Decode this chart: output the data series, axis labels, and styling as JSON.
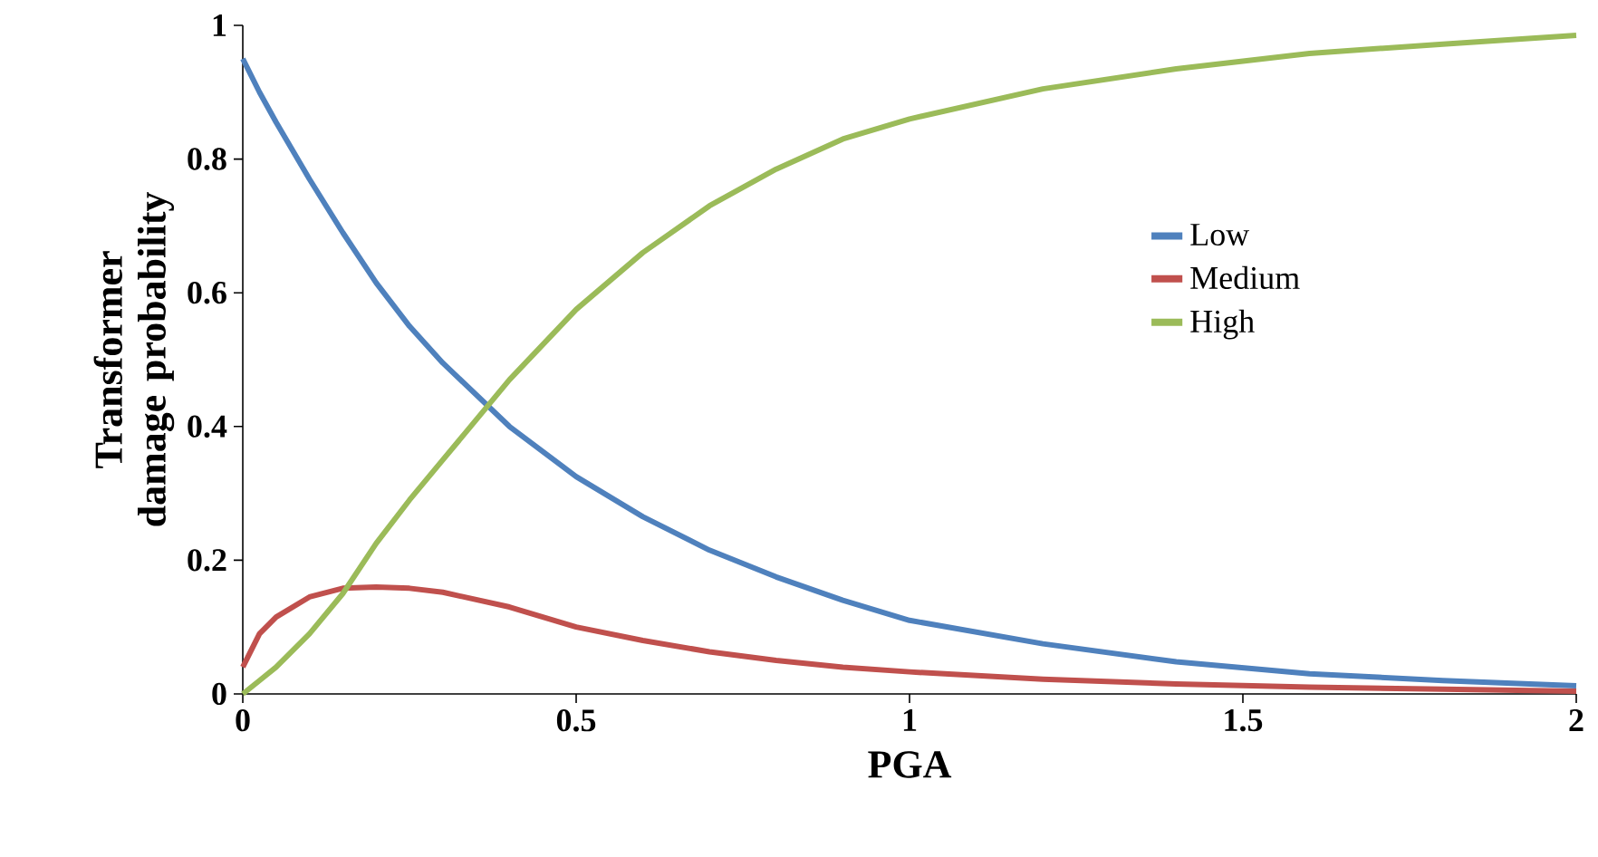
{
  "chart_data": {
    "type": "line",
    "xlabel": "PGA",
    "ylabel": "Transformer damage probability",
    "x": [
      0,
      0.025,
      0.05,
      0.1,
      0.15,
      0.2,
      0.25,
      0.3,
      0.4,
      0.5,
      0.6,
      0.7,
      0.8,
      0.9,
      1.0,
      1.2,
      1.4,
      1.6,
      1.8,
      2.0
    ],
    "series": [
      {
        "name": "Low",
        "color": "#4f81bd",
        "values": [
          0.95,
          0.9,
          0.855,
          0.77,
          0.69,
          0.615,
          0.55,
          0.495,
          0.4,
          0.325,
          0.265,
          0.215,
          0.175,
          0.14,
          0.11,
          0.075,
          0.048,
          0.03,
          0.02,
          0.012
        ]
      },
      {
        "name": "Medium",
        "color": "#c0504d",
        "values": [
          0.04,
          0.09,
          0.115,
          0.145,
          0.158,
          0.16,
          0.158,
          0.152,
          0.13,
          0.1,
          0.08,
          0.063,
          0.05,
          0.04,
          0.033,
          0.022,
          0.015,
          0.01,
          0.007,
          0.004
        ]
      },
      {
        "name": "High",
        "color": "#9bbb59",
        "values": [
          0,
          0.02,
          0.04,
          0.09,
          0.15,
          0.225,
          0.29,
          0.35,
          0.47,
          0.575,
          0.66,
          0.73,
          0.785,
          0.83,
          0.86,
          0.905,
          0.935,
          0.958,
          0.972,
          0.985
        ]
      }
    ],
    "xlim": [
      0,
      2
    ],
    "ylim": [
      0,
      1
    ],
    "xticks": [
      0,
      0.5,
      1,
      1.5,
      2
    ],
    "yticks": [
      0,
      0.2,
      0.4,
      0.6,
      0.8,
      1
    ],
    "grid": false,
    "legend": "right",
    "marker": "none",
    "line_style": "solid"
  }
}
